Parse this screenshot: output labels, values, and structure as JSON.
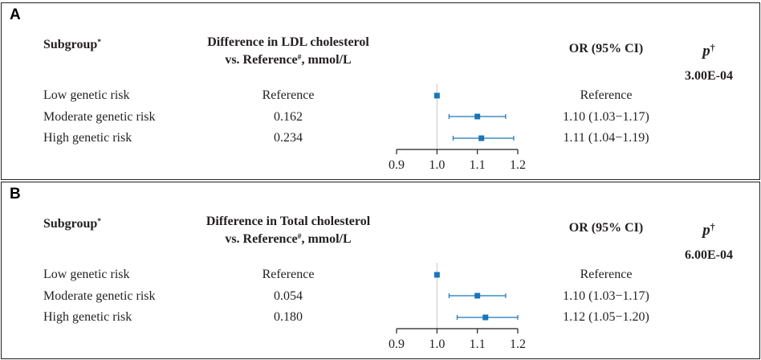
{
  "chart_data": [
    {
      "type": "forest",
      "panel_label": "A",
      "headers": {
        "subgroup": "Subgroup",
        "subgroup_sup": "*",
        "diff_line1": "Difference in LDL cholesterol",
        "diff_line2_pre": "vs. Reference",
        "diff_line2_sup": "#",
        "diff_line2_post": ", mmol/L",
        "or": "OR (95% CI)",
        "p": "p",
        "p_sup": "†"
      },
      "p_value": "3.00E-04",
      "xlim": [
        0.9,
        1.2
      ],
      "xticks": [
        "0.9",
        "1.0",
        "1.1",
        "1.2"
      ],
      "tick_values": [
        0.9,
        1.0,
        1.1,
        1.2
      ],
      "reference_line": 1.0,
      "color": "#1a75b9",
      "rows": [
        {
          "name": "Low genetic risk",
          "diff": "Reference",
          "or_text": "Reference",
          "or": 1.0,
          "lo": 1.0,
          "hi": 1.0
        },
        {
          "name": "Moderate genetic risk",
          "diff": "0.162",
          "or_text": "1.10 (1.03−1.17)",
          "or": 1.1,
          "lo": 1.03,
          "hi": 1.17
        },
        {
          "name": "High genetic risk",
          "diff": "0.234",
          "or_text": "1.11 (1.04−1.19)",
          "or": 1.11,
          "lo": 1.04,
          "hi": 1.19
        }
      ]
    },
    {
      "type": "forest",
      "panel_label": "B",
      "headers": {
        "subgroup": "Subgroup",
        "subgroup_sup": "*",
        "diff_line1": "Difference in Total cholesterol",
        "diff_line2_pre": "vs. Reference",
        "diff_line2_sup": "#",
        "diff_line2_post": ", mmol/L",
        "or": "OR (95% CI)",
        "p": "p",
        "p_sup": "†"
      },
      "p_value": "6.00E-04",
      "xlim": [
        0.9,
        1.2
      ],
      "xticks": [
        "0.9",
        "1.0",
        "1.1",
        "1.2"
      ],
      "tick_values": [
        0.9,
        1.0,
        1.1,
        1.2
      ],
      "reference_line": 1.0,
      "color": "#1a75b9",
      "rows": [
        {
          "name": "Low genetic risk",
          "diff": "Reference",
          "or_text": "Reference",
          "or": 1.0,
          "lo": 1.0,
          "hi": 1.0
        },
        {
          "name": "Moderate genetic risk",
          "diff": "0.054",
          "or_text": "1.10 (1.03−1.17)",
          "or": 1.1,
          "lo": 1.03,
          "hi": 1.17
        },
        {
          "name": "High genetic risk",
          "diff": "0.180",
          "or_text": "1.12 (1.05−1.20)",
          "or": 1.12,
          "lo": 1.05,
          "hi": 1.2
        }
      ]
    }
  ]
}
